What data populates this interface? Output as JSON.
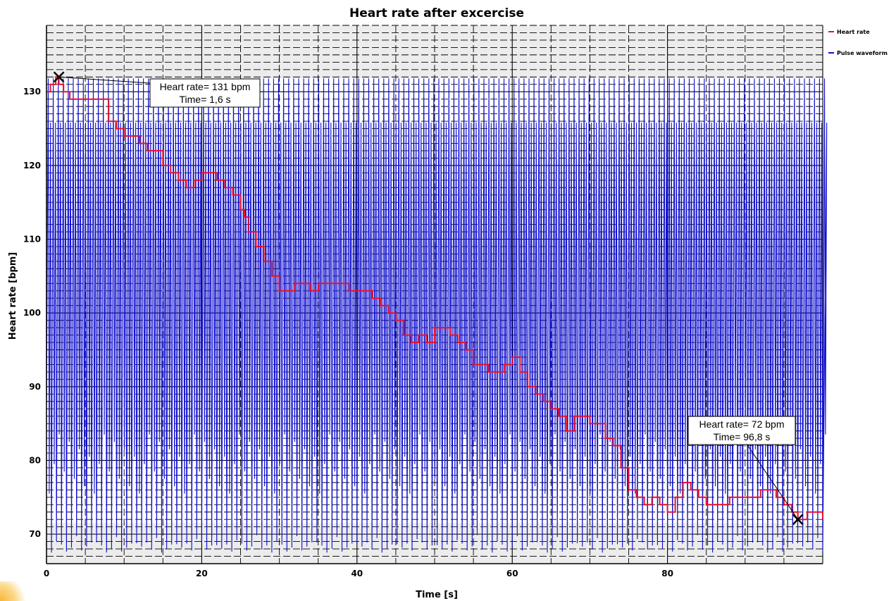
{
  "chart_data": {
    "type": "line",
    "title": "Heart rate after excercise",
    "xlabel": "Time [s]",
    "ylabel": "Heart rate [bpm]",
    "xlim": [
      0,
      100
    ],
    "ylim": [
      66,
      139
    ],
    "x_ticks": [
      0,
      20,
      40,
      60,
      80
    ],
    "y_ticks": [
      70,
      80,
      90,
      100,
      110,
      120,
      130
    ],
    "grid": true,
    "legend_position": "top-right",
    "band_low": 71.5,
    "band_high": 131.8,
    "series": [
      {
        "name": "Heart rate",
        "color": "#e8102a",
        "x": [
          0,
          0.5,
          1.2,
          1.6,
          2.2,
          3,
          5,
          8,
          9,
          10,
          12,
          13,
          15,
          16,
          17,
          18,
          19,
          20,
          21,
          22,
          23,
          24,
          25,
          25.5,
          26,
          27,
          28,
          29,
          30,
          31,
          32,
          33,
          34,
          35,
          38,
          39,
          42,
          43,
          44,
          45,
          46,
          47,
          48,
          49,
          50,
          51,
          52,
          53,
          54,
          55,
          56,
          57,
          58,
          59,
          60,
          61,
          62,
          63,
          64,
          65,
          66,
          67,
          68,
          70,
          72,
          73,
          74,
          75,
          76,
          77,
          78,
          79,
          80,
          81,
          82,
          83,
          84,
          85,
          86,
          88,
          89,
          91,
          92,
          93,
          94,
          95,
          96,
          96.8,
          97,
          98,
          100
        ],
        "y": [
          130,
          131,
          132,
          131,
          130,
          129,
          129,
          126,
          125,
          124,
          123,
          122,
          120,
          119,
          118,
          117,
          118,
          119,
          119,
          118,
          117,
          116,
          114,
          113,
          111,
          109,
          107,
          105,
          103,
          103,
          104,
          104,
          103,
          104,
          104,
          103,
          102,
          101,
          100,
          99,
          97,
          96,
          97,
          96,
          98,
          98,
          97,
          96,
          95,
          93,
          93,
          92,
          92,
          93,
          94,
          92,
          90,
          89,
          88,
          87,
          86,
          84,
          86,
          85,
          83,
          82,
          79,
          76,
          75,
          74,
          75,
          74,
          73,
          75,
          77,
          76,
          75,
          74,
          74,
          75,
          75,
          75,
          76,
          76,
          75,
          74,
          73,
          72,
          72,
          73,
          72
        ]
      },
      {
        "name": "Pulse waveform",
        "color": "#1010d0",
        "beats_per_second": 1.55,
        "amplitude": [
          67.5,
          131.8
        ]
      }
    ],
    "annotations": [
      {
        "x": 1.6,
        "y": 132,
        "line1": "Heart rate= 131 bpm",
        "line2": "Time= 1,6 s"
      },
      {
        "x": 96.8,
        "y": 72,
        "line1": "Heart rate= 72 bpm",
        "line2": "Time= 96,8 s"
      }
    ]
  }
}
